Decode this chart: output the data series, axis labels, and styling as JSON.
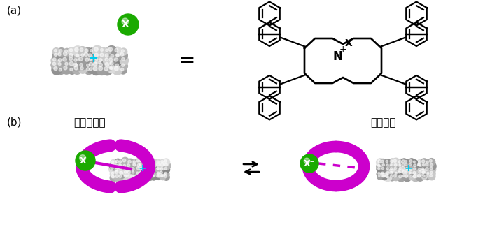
{
  "panel_a_label": "(a)",
  "panel_b_label": "(b)",
  "label_strong": "強固な錢体",
  "label_weak": "緩い錢体",
  "green_color": "#1aaa00",
  "magenta_color": "#cc00cc",
  "cyan_color": "#00ccee",
  "bg_color": "#ffffff",
  "lw_struct": 1.6
}
